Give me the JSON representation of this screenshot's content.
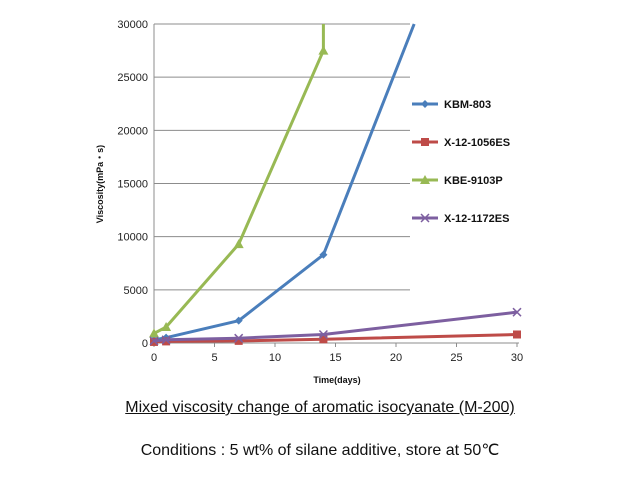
{
  "chart_data": {
    "type": "line",
    "title": "",
    "xlabel": "Time(days)",
    "ylabel": "Viscosity(mPa・s)",
    "xlim": [
      0,
      30
    ],
    "ylim": [
      0,
      30000
    ],
    "xticks": [
      0,
      5,
      10,
      15,
      20,
      25,
      30
    ],
    "yticks": [
      0,
      5000,
      10000,
      15000,
      20000,
      25000,
      30000
    ],
    "grid": "horizontal",
    "legend_position": "right",
    "series": [
      {
        "name": "KBM-803",
        "color": "#4a7ebb",
        "marker": "diamond",
        "points": [
          [
            0,
            300
          ],
          [
            1,
            500
          ],
          [
            7,
            2100
          ],
          [
            14,
            8300
          ],
          [
            21.5,
            30000
          ]
        ]
      },
      {
        "name": "X-12-1056ES",
        "color": "#be4b48",
        "marker": "square",
        "points": [
          [
            0,
            100
          ],
          [
            1,
            150
          ],
          [
            7,
            200
          ],
          [
            14,
            350
          ],
          [
            30,
            800
          ]
        ]
      },
      {
        "name": "KBE-9103P",
        "color": "#98b954",
        "marker": "triangle",
        "points": [
          [
            0,
            900
          ],
          [
            1,
            1500
          ],
          [
            7,
            9300
          ],
          [
            14,
            27500
          ],
          [
            14,
            30000
          ]
        ]
      },
      {
        "name": "X-12-1172ES",
        "color": "#7d5fa0",
        "marker": "x",
        "points": [
          [
            0,
            200
          ],
          [
            1,
            300
          ],
          [
            7,
            450
          ],
          [
            14,
            800
          ],
          [
            30,
            2900
          ]
        ]
      }
    ]
  },
  "caption": {
    "title": "Mixed viscosity change of aromatic isocyanate (M-200)",
    "conditions": "Conditions : 5 wt% of silane additive, store at 50℃"
  }
}
